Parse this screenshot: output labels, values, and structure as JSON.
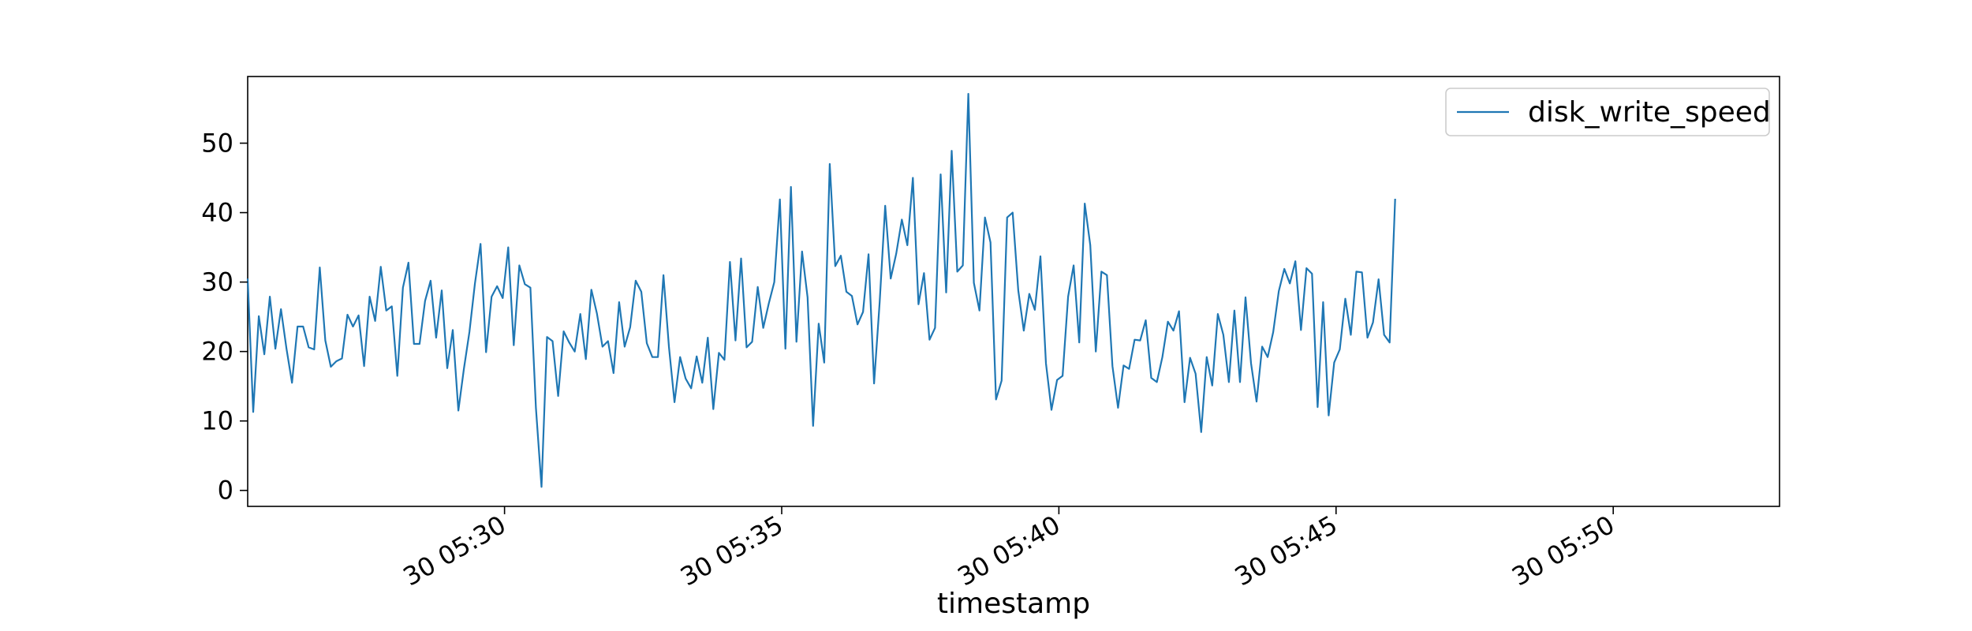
{
  "chart_data": {
    "type": "line",
    "title": "",
    "xlabel": "timestamp",
    "ylabel": "",
    "legend": {
      "placement": "top-right",
      "entries": [
        "disk_write_speed"
      ]
    },
    "grid": false,
    "x_start": "05:25:22",
    "x_step_seconds": 6,
    "x_range": [
      "05:25:22",
      "05:53:00"
    ],
    "x_ticks": [
      "30 05:30",
      "30 05:35",
      "30 05:40",
      "30 05:45",
      "30 05:50"
    ],
    "x_tick_times": [
      "05:30:00",
      "05:35:00",
      "05:40:00",
      "05:45:00",
      "05:50:00"
    ],
    "ylim": [
      -2.3,
      59.6
    ],
    "y_ticks": [
      0,
      10,
      20,
      30,
      40,
      50
    ],
    "colors": {
      "series": "#1f77b4",
      "axes": "#000000"
    },
    "series": [
      {
        "name": "disk_write_speed",
        "values": [
          30.5,
          11.3,
          25.1,
          19.6,
          27.9,
          20.4,
          26.1,
          20.4,
          15.5,
          23.6,
          23.6,
          20.6,
          20.3,
          32.1,
          21.6,
          17.8,
          18.6,
          19.0,
          25.3,
          23.6,
          25.2,
          17.9,
          27.9,
          24.4,
          32.2,
          25.9,
          26.5,
          16.5,
          29.2,
          32.8,
          21.1,
          21.1,
          27.3,
          30.2,
          22.0,
          28.8,
          17.6,
          23.1,
          11.5,
          17.5,
          22.8,
          29.8,
          35.5,
          19.9,
          27.9,
          29.4,
          27.7,
          35.0,
          20.9,
          32.4,
          29.7,
          29.2,
          11.9,
          0.5,
          22.1,
          21.5,
          13.6,
          22.9,
          21.3,
          20.0,
          25.4,
          18.9,
          28.9,
          25.5,
          20.7,
          21.5,
          16.9,
          27.1,
          20.7,
          23.5,
          30.2,
          28.6,
          21.2,
          19.2,
          19.2,
          31.0,
          20.6,
          12.7,
          19.2,
          16.1,
          14.7,
          19.3,
          15.5,
          22.0,
          11.7,
          19.8,
          18.8,
          32.9,
          21.6,
          33.4,
          20.6,
          21.4,
          29.3,
          23.4,
          26.9,
          30.0,
          41.9,
          20.4,
          43.7,
          21.4,
          34.4,
          27.8,
          9.3,
          24.0,
          18.4,
          47.0,
          32.3,
          33.8,
          28.6,
          28.0,
          23.9,
          25.7,
          34.0,
          15.4,
          27.1,
          41.0,
          30.5,
          34.1,
          39.0,
          35.3,
          45.0,
          26.8,
          31.3,
          21.7,
          23.4,
          45.5,
          28.5,
          48.9,
          31.5,
          32.4,
          57.1,
          29.9,
          25.9,
          39.3,
          35.7,
          13.1,
          15.8,
          39.3,
          40.0,
          28.8,
          23.0,
          28.3,
          26.0,
          33.7,
          18.3,
          11.6,
          15.9,
          16.5,
          27.9,
          32.4,
          21.3,
          41.3,
          35.3,
          20.0,
          31.5,
          31.0,
          17.9,
          11.9,
          18.0,
          17.5,
          21.7,
          21.6,
          24.5,
          16.2,
          15.6,
          19.2,
          24.3,
          23.0,
          25.8,
          12.7,
          19.1,
          16.8,
          8.4,
          19.2,
          15.1,
          25.4,
          22.4,
          15.6,
          25.9,
          15.6,
          27.8,
          18.3,
          12.8,
          20.7,
          19.2,
          22.8,
          28.7,
          31.9,
          29.8,
          33.0,
          23.1,
          32.0,
          31.2,
          12.0,
          27.1,
          10.8,
          18.4,
          20.3,
          27.6,
          22.4,
          31.5,
          31.4,
          22.0,
          24.2,
          30.4,
          22.4,
          21.3,
          42.0
        ]
      }
    ]
  }
}
